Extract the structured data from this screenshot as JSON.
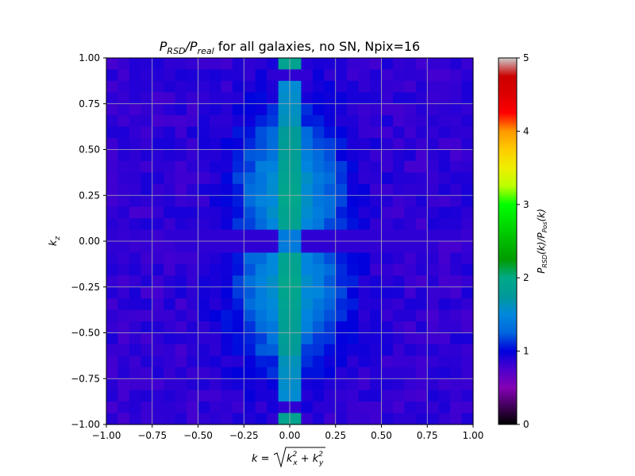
{
  "chart_data": {
    "type": "heatmap",
    "title": {
      "lhs_main": "P",
      "lhs_sub": "RSD",
      "slash": "/",
      "rhs_main": "P",
      "rhs_sub": "real",
      "rest": " for all galaxies, no SN, Npix=16"
    },
    "xlabel": {
      "prefix": "k = ",
      "term1_main": "k",
      "term1_sup": "2",
      "term1_sub": "x",
      "plus": " + ",
      "term2_main": "k",
      "term2_sup": "2",
      "term2_sub": "y"
    },
    "ylabel": {
      "main": "k",
      "sub": "z"
    },
    "xlim": [
      -1.0,
      1.0
    ],
    "ylim": [
      -1.0,
      1.0
    ],
    "xticks": [
      "−1.00",
      "−0.75",
      "−0.50",
      "−0.25",
      "0.00",
      "0.25",
      "0.50",
      "0.75",
      "1.00"
    ],
    "yticks": [
      "−1.00",
      "−0.75",
      "−0.50",
      "−0.25",
      "0.00",
      "0.25",
      "0.50",
      "0.75",
      "1.00"
    ],
    "grid": true,
    "colormap": "nipy_spectral",
    "grid_shape": [
      32,
      32
    ],
    "colorbar": {
      "range": [
        0,
        5
      ],
      "ticks": [
        "0",
        "1",
        "2",
        "3",
        "4",
        "5"
      ],
      "label": {
        "a_main": "P",
        "a_sub": "RSD",
        "a_arg": "(k)",
        "slash": "/",
        "b_main": "P",
        "b_sub": "Pos",
        "b_arg": "(k)"
      }
    },
    "description_values": {
      "background": 0.85,
      "center_column_peak": 1.95,
      "edge_peak_at_kz_pm_0_97": 1.9,
      "trough_at_kz_0": 1.4
    }
  }
}
